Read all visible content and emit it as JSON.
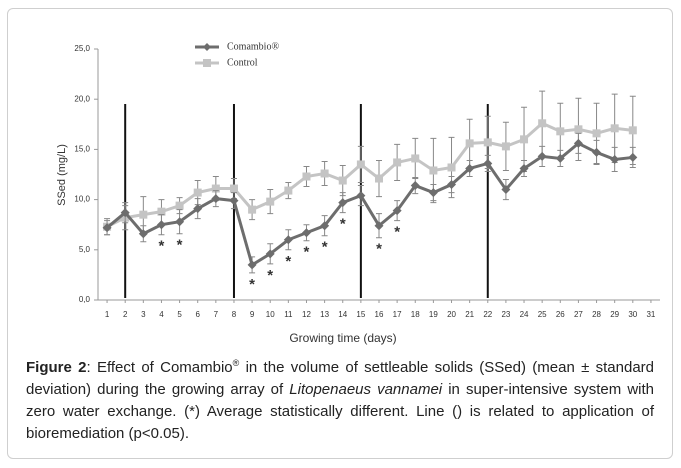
{
  "chart_data": {
    "type": "line",
    "y_axis_label": "SSed (mg/L)",
    "x_axis_label": "Growing time (days)",
    "x": [
      1,
      2,
      3,
      4,
      5,
      6,
      7,
      8,
      9,
      10,
      11,
      12,
      13,
      14,
      15,
      16,
      17,
      18,
      19,
      20,
      21,
      22,
      23,
      24,
      25,
      26,
      27,
      28,
      29,
      30
    ],
    "xlim": [
      0.5,
      31.5
    ],
    "xticks": [
      1,
      2,
      3,
      4,
      5,
      6,
      7,
      8,
      9,
      10,
      11,
      12,
      13,
      14,
      15,
      16,
      17,
      18,
      19,
      20,
      21,
      22,
      23,
      24,
      25,
      26,
      27,
      28,
      29,
      30,
      31
    ],
    "ylim": [
      0,
      25
    ],
    "yticks": [
      {
        "value": 0,
        "label": "0,0"
      },
      {
        "value": 5,
        "label": "5,0"
      },
      {
        "value": 10,
        "label": "10,0"
      },
      {
        "value": 15,
        "label": "15,0"
      },
      {
        "value": 20,
        "label": "20,0"
      },
      {
        "value": 25,
        "label": "25,0"
      }
    ],
    "series": [
      {
        "name": "Comambio®",
        "color": "#6d6d6d",
        "marker": "diamond",
        "values": [
          7.2,
          8.7,
          6.6,
          7.5,
          7.8,
          9.1,
          10.1,
          9.9,
          3.5,
          4.6,
          6.0,
          6.7,
          7.4,
          9.7,
          10.4,
          7.4,
          8.9,
          11.4,
          10.7,
          11.5,
          13.1,
          13.6,
          11.0,
          13.1,
          14.3,
          14.1,
          15.6,
          14.7,
          14.0,
          14.2
        ],
        "errors": [
          0.7,
          1.0,
          0.8,
          1.0,
          1.2,
          1.0,
          0.8,
          0.8,
          0.8,
          1.0,
          1.0,
          0.8,
          1.0,
          1.0,
          1.0,
          1.2,
          1.0,
          0.8,
          0.8,
          0.8,
          0.8,
          0.8,
          1.0,
          0.8,
          1.0,
          0.8,
          1.0,
          1.2,
          1.2,
          1.0
        ]
      },
      {
        "name": "Control",
        "color": "#c4c4c4",
        "marker": "square",
        "values": [
          7.3,
          8.2,
          8.5,
          8.8,
          9.4,
          10.7,
          11.1,
          11.1,
          9.0,
          9.8,
          10.9,
          12.3,
          12.6,
          11.9,
          13.5,
          12.1,
          13.7,
          14.1,
          12.9,
          13.2,
          15.6,
          15.7,
          15.3,
          16.0,
          17.6,
          16.8,
          17.0,
          16.6,
          17.1,
          16.9
        ],
        "errors": [
          0.8,
          1.2,
          1.8,
          1.2,
          0.8,
          1.2,
          1.2,
          1.0,
          1.0,
          1.2,
          0.8,
          1.0,
          1.2,
          1.5,
          1.8,
          1.8,
          1.8,
          2.0,
          3.2,
          3.0,
          2.4,
          2.6,
          2.4,
          3.2,
          3.2,
          2.8,
          3.1,
          3.0,
          3.4,
          3.4
        ]
      }
    ],
    "bioremediation_days": [
      2,
      8,
      15,
      22
    ],
    "significance_marks": [
      {
        "day": 4,
        "label": "*"
      },
      {
        "day": 5,
        "label": "*"
      },
      {
        "day": 9,
        "label": "*"
      },
      {
        "day": 10,
        "label": "*"
      },
      {
        "day": 11,
        "label": "*"
      },
      {
        "day": 12,
        "label": "*"
      },
      {
        "day": 13,
        "label": "*"
      },
      {
        "day": 14,
        "label": "*"
      },
      {
        "day": 16,
        "label": "*"
      },
      {
        "day": 17,
        "label": "*"
      }
    ]
  },
  "caption": {
    "label": "Figure 2",
    "text_1": ": Effect of Comambio",
    "sup": "®",
    "text_2": " in the volume of settleable solids (SSed) (mean ± standard deviation) during the growing array of ",
    "species": "Litopenaeus vannamei",
    "text_3": " in super-intensive system with zero water exchange. (*) Average statistically different. Line () is related to application of bioremediation (p<0.05)."
  }
}
